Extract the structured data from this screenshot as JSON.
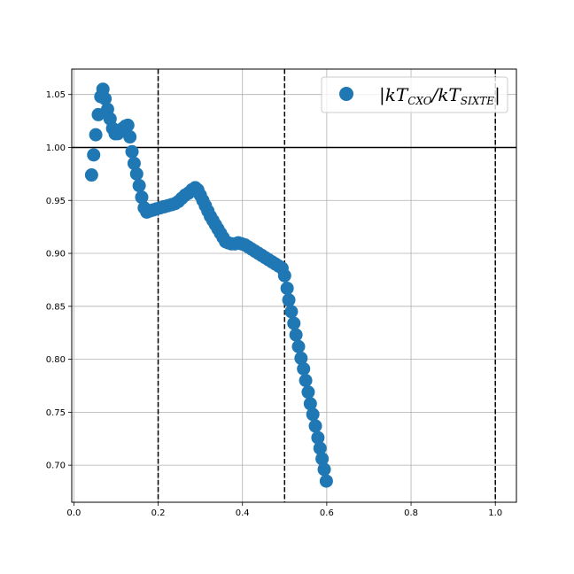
{
  "chart_data": {
    "type": "scatter",
    "title": "",
    "xlabel": "",
    "ylabel": "",
    "xlim": [
      -0.005,
      1.05
    ],
    "ylim": [
      0.665,
      1.074
    ],
    "grid": true,
    "legend_placement": "top-right",
    "x_ticks": [
      0.0,
      0.2,
      0.4,
      0.6,
      0.8,
      1.0
    ],
    "x_tick_labels": [
      "0.0",
      "0.2",
      "0.4",
      "0.6",
      "0.8",
      "1.0"
    ],
    "y_ticks": [
      0.7,
      0.75,
      0.8,
      0.85,
      0.9,
      0.95,
      1.0,
      1.05
    ],
    "y_tick_labels": [
      "0.70",
      "0.75",
      "0.80",
      "0.85",
      "0.90",
      "0.95",
      "1.00",
      "1.05"
    ],
    "reference_lines": {
      "horizontal": [
        {
          "y": 1.0,
          "style": "solid"
        }
      ],
      "vertical": [
        {
          "x": 0.2,
          "style": "dashed"
        },
        {
          "x": 0.5,
          "style": "dashed"
        },
        {
          "x": 1.0,
          "style": "dashed"
        }
      ]
    },
    "series": [
      {
        "name": "|kT_CXO/kT_SIXTE|",
        "color": "#1f77b4",
        "marker": "circle",
        "points": [
          [
            0.042,
            0.974
          ],
          [
            0.047,
            0.993
          ],
          [
            0.052,
            1.012
          ],
          [
            0.058,
            1.031
          ],
          [
            0.064,
            1.048
          ],
          [
            0.069,
            1.055
          ],
          [
            0.074,
            1.046
          ],
          [
            0.08,
            1.036
          ],
          [
            0.086,
            1.027
          ],
          [
            0.092,
            1.018
          ],
          [
            0.098,
            1.013
          ],
          [
            0.104,
            1.013
          ],
          [
            0.11,
            1.016
          ],
          [
            0.116,
            1.018
          ],
          [
            0.122,
            1.02
          ],
          [
            0.128,
            1.021
          ],
          [
            0.133,
            1.01
          ],
          [
            0.138,
            0.996
          ],
          [
            0.143,
            0.985
          ],
          [
            0.149,
            0.975
          ],
          [
            0.155,
            0.964
          ],
          [
            0.161,
            0.953
          ],
          [
            0.167,
            0.943
          ],
          [
            0.173,
            0.939
          ],
          [
            0.18,
            0.94
          ],
          [
            0.188,
            0.941
          ],
          [
            0.196,
            0.942
          ],
          [
            0.205,
            0.943
          ],
          [
            0.214,
            0.944
          ],
          [
            0.223,
            0.945
          ],
          [
            0.232,
            0.946
          ],
          [
            0.24,
            0.947
          ],
          [
            0.248,
            0.949
          ],
          [
            0.256,
            0.952
          ],
          [
            0.264,
            0.955
          ],
          [
            0.272,
            0.957
          ],
          [
            0.28,
            0.96
          ],
          [
            0.288,
            0.962
          ],
          [
            0.294,
            0.96
          ],
          [
            0.3,
            0.955
          ],
          [
            0.306,
            0.95
          ],
          [
            0.312,
            0.945
          ],
          [
            0.318,
            0.94
          ],
          [
            0.324,
            0.935
          ],
          [
            0.33,
            0.931
          ],
          [
            0.336,
            0.927
          ],
          [
            0.342,
            0.923
          ],
          [
            0.348,
            0.919
          ],
          [
            0.354,
            0.915
          ],
          [
            0.36,
            0.911
          ],
          [
            0.366,
            0.91
          ],
          [
            0.374,
            0.909
          ],
          [
            0.382,
            0.909
          ],
          [
            0.39,
            0.91
          ],
          [
            0.398,
            0.909
          ],
          [
            0.406,
            0.908
          ],
          [
            0.414,
            0.906
          ],
          [
            0.422,
            0.904
          ],
          [
            0.43,
            0.902
          ],
          [
            0.438,
            0.9
          ],
          [
            0.446,
            0.898
          ],
          [
            0.454,
            0.896
          ],
          [
            0.462,
            0.894
          ],
          [
            0.47,
            0.892
          ],
          [
            0.478,
            0.89
          ],
          [
            0.486,
            0.888
          ],
          [
            0.494,
            0.886
          ],
          [
            0.5,
            0.879
          ],
          [
            0.506,
            0.867
          ],
          [
            0.51,
            0.856
          ],
          [
            0.516,
            0.845
          ],
          [
            0.522,
            0.834
          ],
          [
            0.527,
            0.823
          ],
          [
            0.533,
            0.812
          ],
          [
            0.539,
            0.801
          ],
          [
            0.545,
            0.791
          ],
          [
            0.55,
            0.78
          ],
          [
            0.556,
            0.769
          ],
          [
            0.561,
            0.758
          ],
          [
            0.567,
            0.748
          ],
          [
            0.573,
            0.737
          ],
          [
            0.579,
            0.726
          ],
          [
            0.584,
            0.716
          ],
          [
            0.589,
            0.706
          ],
          [
            0.594,
            0.696
          ],
          [
            0.599,
            0.685
          ]
        ]
      }
    ]
  }
}
